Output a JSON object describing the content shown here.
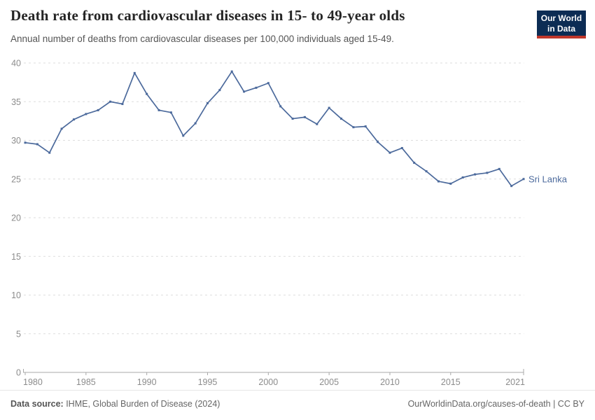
{
  "header": {
    "title": "Death rate from cardiovascular diseases in 15- to 49-year olds",
    "subtitle": "Annual number of deaths from cardiovascular diseases per 100,000 individuals aged 15-49.",
    "logo": {
      "line1": "Our World",
      "line2": "in Data",
      "bg_color": "#0c2c54",
      "bar_color": "#c0372b"
    }
  },
  "chart_data": {
    "type": "line",
    "title": "Death rate from cardiovascular diseases in 15- to 49-year olds",
    "xlabel": "",
    "ylabel": "",
    "xlim": [
      1980,
      2021
    ],
    "ylim": [
      0,
      40
    ],
    "grid": "horizontal-dashed",
    "legend_position": "end-of-line-label",
    "x_ticks": [
      1980,
      1985,
      1990,
      1995,
      2000,
      2005,
      2010,
      2015,
      2021
    ],
    "y_ticks": [
      0,
      5,
      10,
      15,
      20,
      25,
      30,
      35,
      40
    ],
    "x": [
      1980,
      1981,
      1982,
      1983,
      1984,
      1985,
      1986,
      1987,
      1988,
      1989,
      1990,
      1991,
      1992,
      1993,
      1994,
      1995,
      1996,
      1997,
      1998,
      1999,
      2000,
      2001,
      2002,
      2003,
      2004,
      2005,
      2006,
      2007,
      2008,
      2009,
      2010,
      2011,
      2012,
      2013,
      2014,
      2015,
      2016,
      2017,
      2018,
      2019,
      2020,
      2021
    ],
    "series": [
      {
        "name": "Sri Lanka",
        "color": "#4c6a9c",
        "values": [
          29.7,
          29.5,
          28.4,
          31.5,
          32.7,
          33.4,
          33.9,
          35.0,
          34.7,
          38.7,
          36.0,
          33.9,
          33.6,
          30.6,
          32.2,
          34.8,
          36.5,
          38.9,
          36.3,
          36.8,
          37.4,
          34.4,
          32.8,
          33.0,
          32.1,
          34.2,
          32.8,
          31.7,
          31.8,
          29.8,
          28.4,
          29.0,
          27.1,
          26.0,
          24.7,
          24.4,
          25.2,
          25.6,
          25.8,
          26.3,
          24.1,
          25.0
        ]
      }
    ]
  },
  "footer": {
    "source_label": "Data source:",
    "source_text": " IHME, Global Burden of Disease (2024)",
    "right_text": "OurWorldinData.org/causes-of-death | CC BY"
  }
}
